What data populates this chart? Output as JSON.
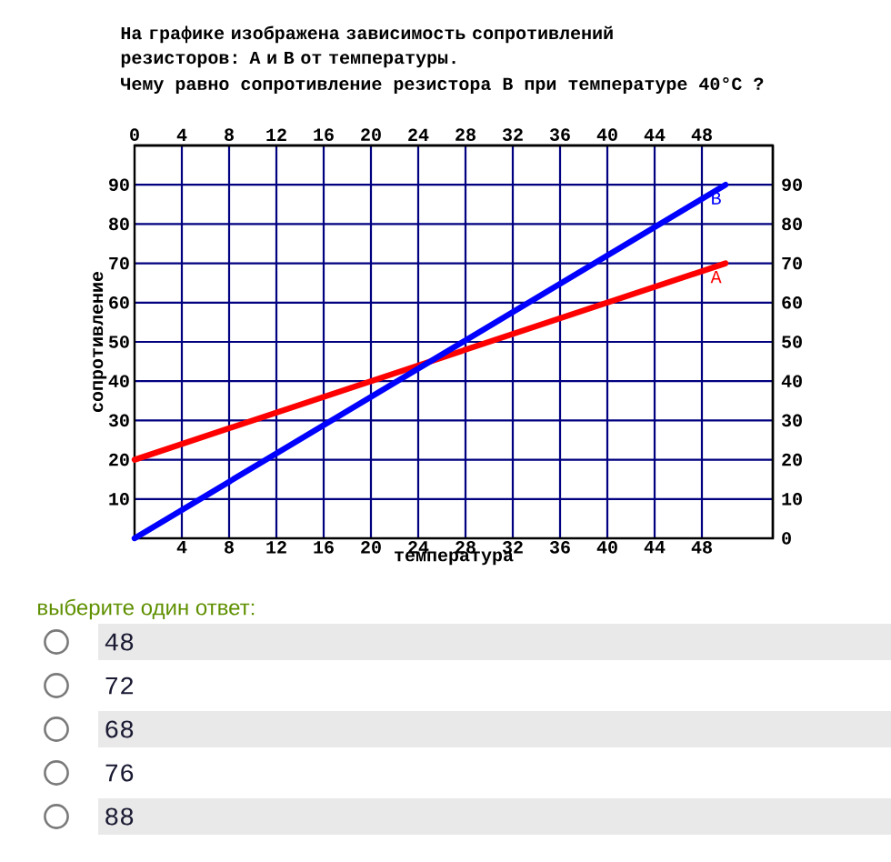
{
  "chart_data": {
    "type": "line",
    "title": "На графике изображена зависимость сопротивлений резисторов: A и B от температуры.",
    "subtitle": "Чему равно сопротивление резистора B при температуре 40°C ?",
    "xlabel": "температура",
    "ylabel": "сопротивление",
    "x": [
      0,
      50
    ],
    "series": [
      {
        "name": "A",
        "color": "#ff0000",
        "values": [
          20,
          70
        ]
      },
      {
        "name": "B",
        "color": "#0000ff",
        "values": [
          0,
          90
        ]
      }
    ],
    "xlim": [
      0,
      54
    ],
    "ylim": [
      0,
      100
    ],
    "xticks": [
      4,
      8,
      12,
      16,
      20,
      24,
      28,
      32,
      36,
      40,
      44,
      48
    ],
    "yticks": [
      10,
      20,
      30,
      40,
      50,
      60,
      70,
      80,
      90
    ],
    "x2lim": [
      0,
      54
    ],
    "x2ticks": [
      0,
      4,
      8,
      12,
      16,
      20,
      24,
      28,
      32,
      36,
      40,
      44,
      48
    ],
    "y2lim": [
      0,
      100
    ],
    "y2ticks": [
      0,
      10,
      20,
      30,
      40,
      50,
      60,
      70,
      80,
      90
    ],
    "grid": true,
    "marker": "none",
    "line_style": "solid",
    "annotations": [
      "выберите один ответ:",
      "48",
      "72",
      "68",
      "76",
      "88"
    ]
  }
}
